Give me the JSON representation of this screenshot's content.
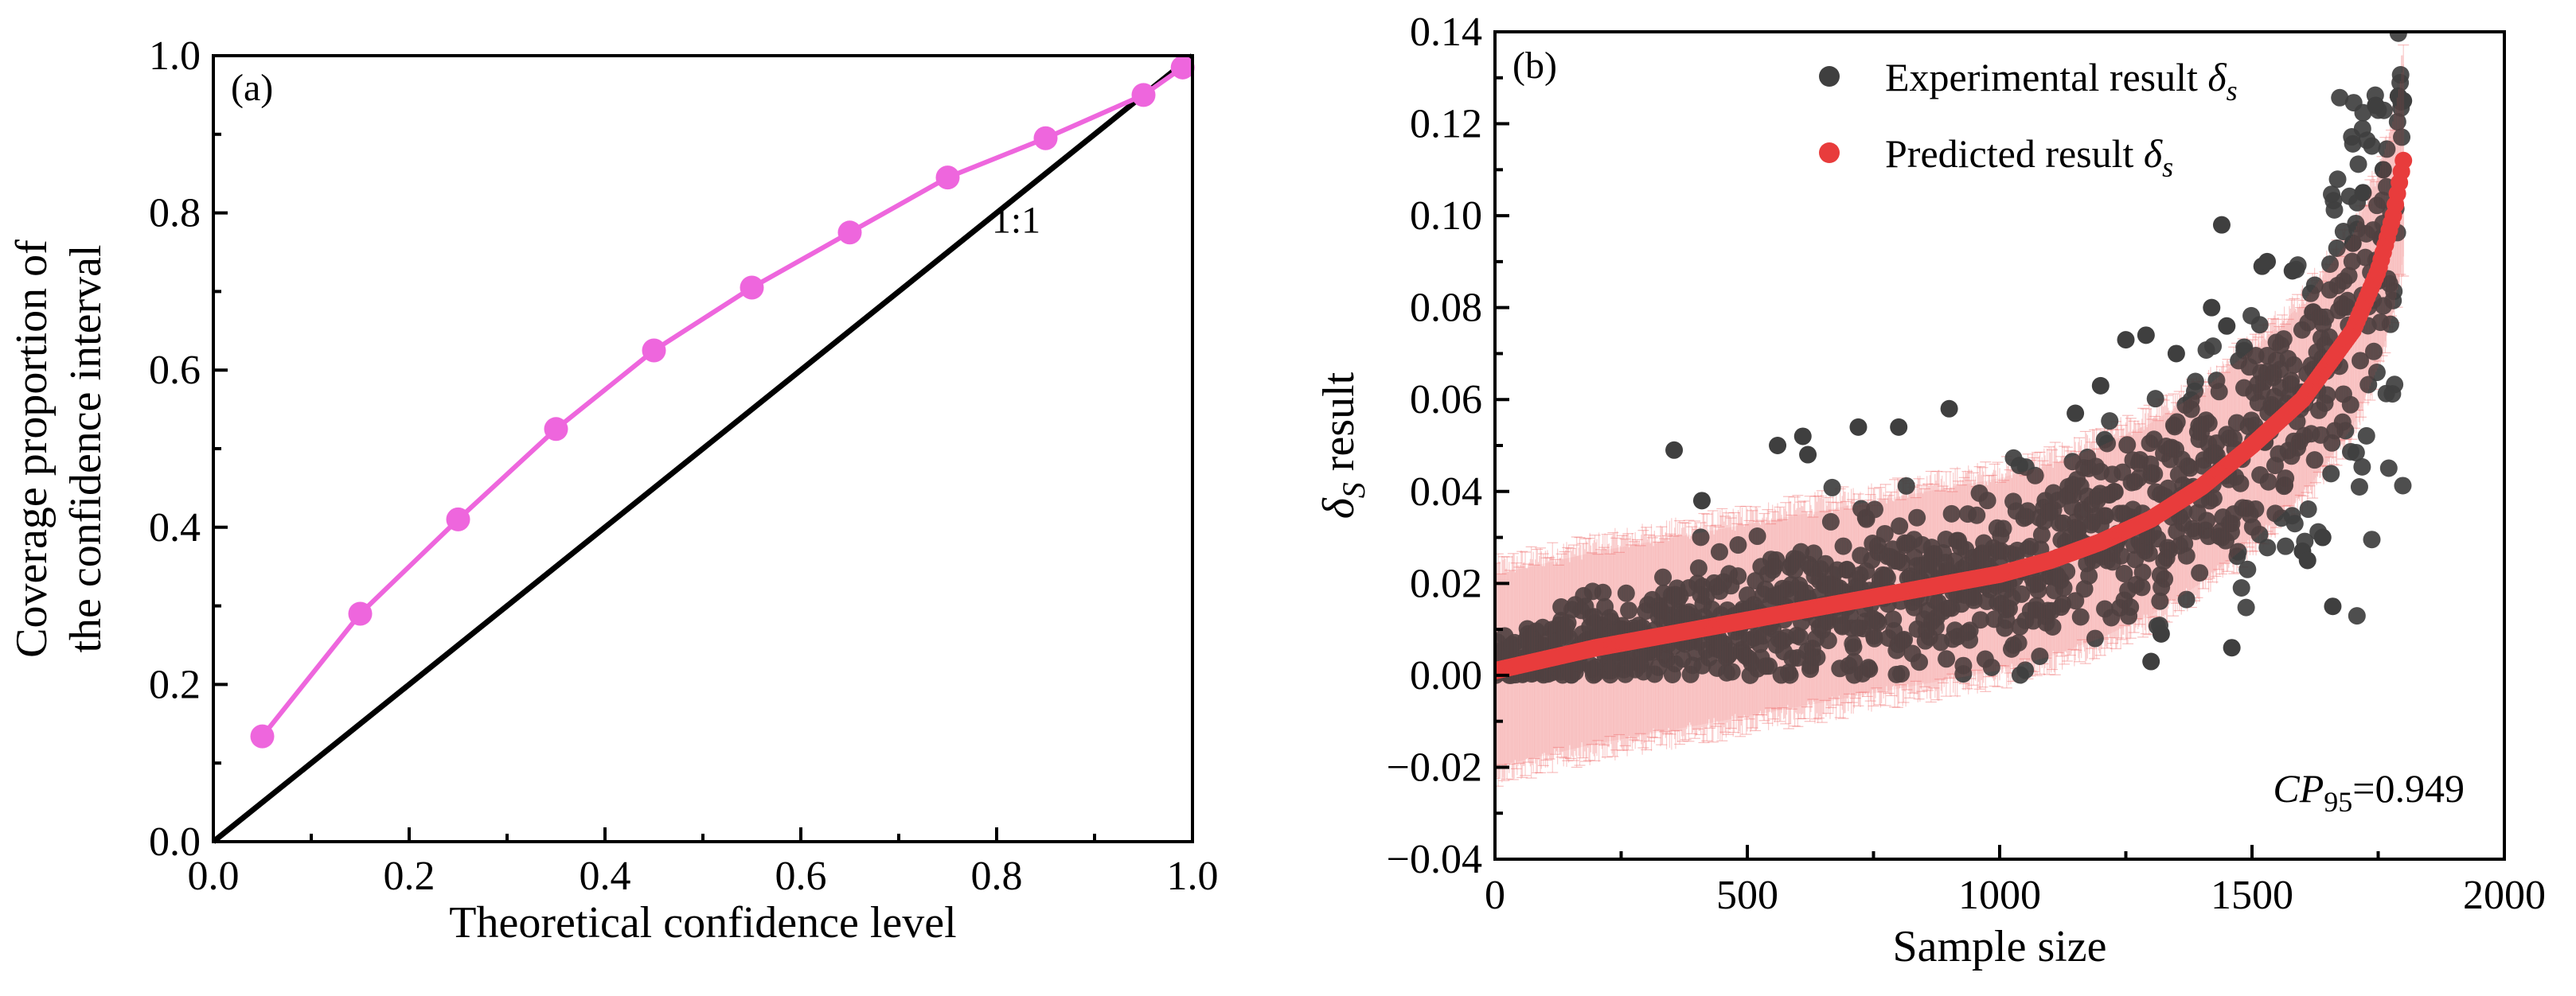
{
  "chart_data": [
    {
      "type": "line",
      "panel_label": "(a)",
      "xlabel": "Theoretical confidence level",
      "ylabel_lines": [
        "Coverage proportion of",
        "the confidence interval"
      ],
      "xlim": [
        0.0,
        1.0
      ],
      "ylim": [
        0.0,
        1.0
      ],
      "xticks": [
        "0.0",
        "0.2",
        "0.4",
        "0.6",
        "0.8",
        "1.0"
      ],
      "yticks": [
        "0.0",
        "0.2",
        "0.4",
        "0.6",
        "0.8",
        "1.0"
      ],
      "reference_line": {
        "label": "1:1",
        "from": [
          0.0,
          0.0
        ],
        "to": [
          1.0,
          1.0
        ],
        "color": "#000000"
      },
      "series": [
        {
          "color": "#EE66DD",
          "x": [
            0.05,
            0.15,
            0.25,
            0.35,
            0.45,
            0.55,
            0.65,
            0.75,
            0.85,
            0.95,
            0.99
          ],
          "y": [
            0.134,
            0.29,
            0.41,
            0.525,
            0.625,
            0.705,
            0.775,
            0.845,
            0.895,
            0.95,
            0.985
          ]
        }
      ],
      "grid": false
    },
    {
      "type": "scatter",
      "panel_label": "(b)",
      "xlabel": "Sample size",
      "ylabel": "δs result",
      "ylabel_symbol": "δ",
      "ylabel_sub": "S",
      "ylabel_rest": " result",
      "xlim": [
        0,
        2000
      ],
      "ylim": [
        -0.04,
        0.14
      ],
      "xticks": [
        "0",
        "500",
        "1000",
        "1500",
        "2000"
      ],
      "yticks": [
        "−0.04",
        "−0.02",
        "0.00",
        "0.02",
        "0.04",
        "0.06",
        "0.08",
        "0.10",
        "0.12",
        "0.14"
      ],
      "legend_placement": "top-center",
      "legend": [
        {
          "text": "Experimental result ",
          "symbol": "δ",
          "sub": "s",
          "color": "#3f3f3f"
        },
        {
          "text": "Predicted result ",
          "symbol": "δ",
          "sub": "s",
          "color": "#e83c3c"
        }
      ],
      "annotation": {
        "text_italic": "CP",
        "sub": "95",
        "rest": "=0.949"
      },
      "n_points": 1800,
      "predicted_trend": {
        "x": [
          0,
          200,
          400,
          600,
          800,
          1000,
          1100,
          1200,
          1300,
          1400,
          1500,
          1600,
          1700,
          1750,
          1780,
          1800
        ],
        "y": [
          0.001,
          0.006,
          0.01,
          0.014,
          0.018,
          0.022,
          0.025,
          0.029,
          0.034,
          0.041,
          0.05,
          0.06,
          0.075,
          0.088,
          0.1,
          0.112
        ],
        "error_halfwidth": 0.022,
        "color": "#e83c3c"
      },
      "experimental_outliers": {
        "x": [
          355,
          410,
          560,
          610,
          620,
          720,
          800,
          900,
          1150,
          1200,
          1250,
          1290,
          1300,
          1350,
          1420,
          1440,
          1460,
          1520,
          1580,
          1600,
          1640,
          1660,
          1700,
          1720,
          1745,
          1760,
          1790,
          1800,
          1450,
          1320,
          1530,
          1610,
          1680
        ],
        "y": [
          0.049,
          0.038,
          0.05,
          0.052,
          0.048,
          0.054,
          0.054,
          0.058,
          0.057,
          0.063,
          0.073,
          0.074,
          0.003,
          0.07,
          0.08,
          0.098,
          0.006,
          0.089,
          0.088,
          0.027,
          0.03,
          0.015,
          0.094,
          0.105,
          0.124,
          0.11,
          0.126,
          0.125,
          0.076,
          0.009,
          0.09,
          0.025,
          0.08
        ],
        "color": "#3f3f3f"
      },
      "grid": false
    }
  ]
}
